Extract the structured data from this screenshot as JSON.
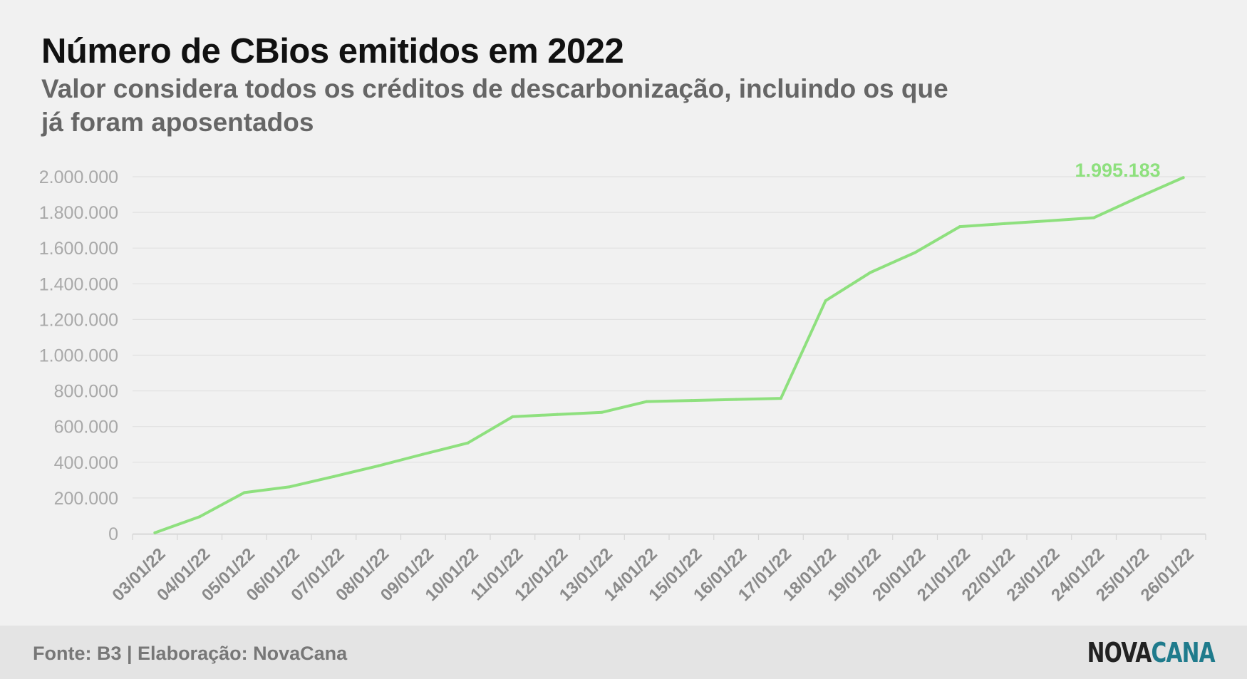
{
  "title": "Número de CBios emitidos em 2022",
  "subtitle": "Valor considera todos os créditos de descarbonização, incluindo os que já foram aposentados",
  "footer": {
    "source": "Fonte: B3 | Elaboração: NovaCana",
    "logo_part1": "NOVA",
    "logo_part2": "CANA"
  },
  "colors": {
    "line": "#8ee07e",
    "grid": "#e1e1e1",
    "tick_text": "#a9a9a9",
    "footer_bg": "#e4e4e4",
    "logo_accent": "#1f7b8c"
  },
  "chart_data": {
    "type": "line",
    "title": "Número de CBios emitidos em 2022",
    "xlabel": "",
    "ylabel": "",
    "ylim": [
      0,
      2000000
    ],
    "y_ticks": [
      0,
      200000,
      400000,
      600000,
      800000,
      1000000,
      1200000,
      1400000,
      1600000,
      1800000,
      2000000
    ],
    "y_tick_labels": [
      "0",
      "200.000",
      "400.000",
      "600.000",
      "800.000",
      "1.000.000",
      "1.200.000",
      "1.400.000",
      "1.600.000",
      "1.800.000",
      "2.000.000"
    ],
    "grid": true,
    "legend": "none",
    "categories": [
      "03/01/22",
      "04/01/22",
      "05/01/22",
      "06/01/22",
      "07/01/22",
      "08/01/22",
      "09/01/22",
      "10/01/22",
      "11/01/22",
      "12/01/22",
      "13/01/22",
      "14/01/22",
      "15/01/22",
      "16/01/22",
      "17/01/22",
      "18/01/22",
      "19/01/22",
      "20/01/22",
      "21/01/22",
      "22/01/22",
      "23/01/22",
      "24/01/22",
      "25/01/22",
      "26/01/22"
    ],
    "series": [
      {
        "values": [
          5000,
          95000,
          230000,
          262000,
          320000,
          380000,
          445000,
          508000,
          655000,
          668000,
          680000,
          740000,
          746000,
          752000,
          758000,
          1305000,
          1463000,
          1575000,
          1720000,
          1737000,
          1753000,
          1770000,
          1885000,
          1995183
        ],
        "last_value_label": "1.995.183"
      }
    ]
  }
}
